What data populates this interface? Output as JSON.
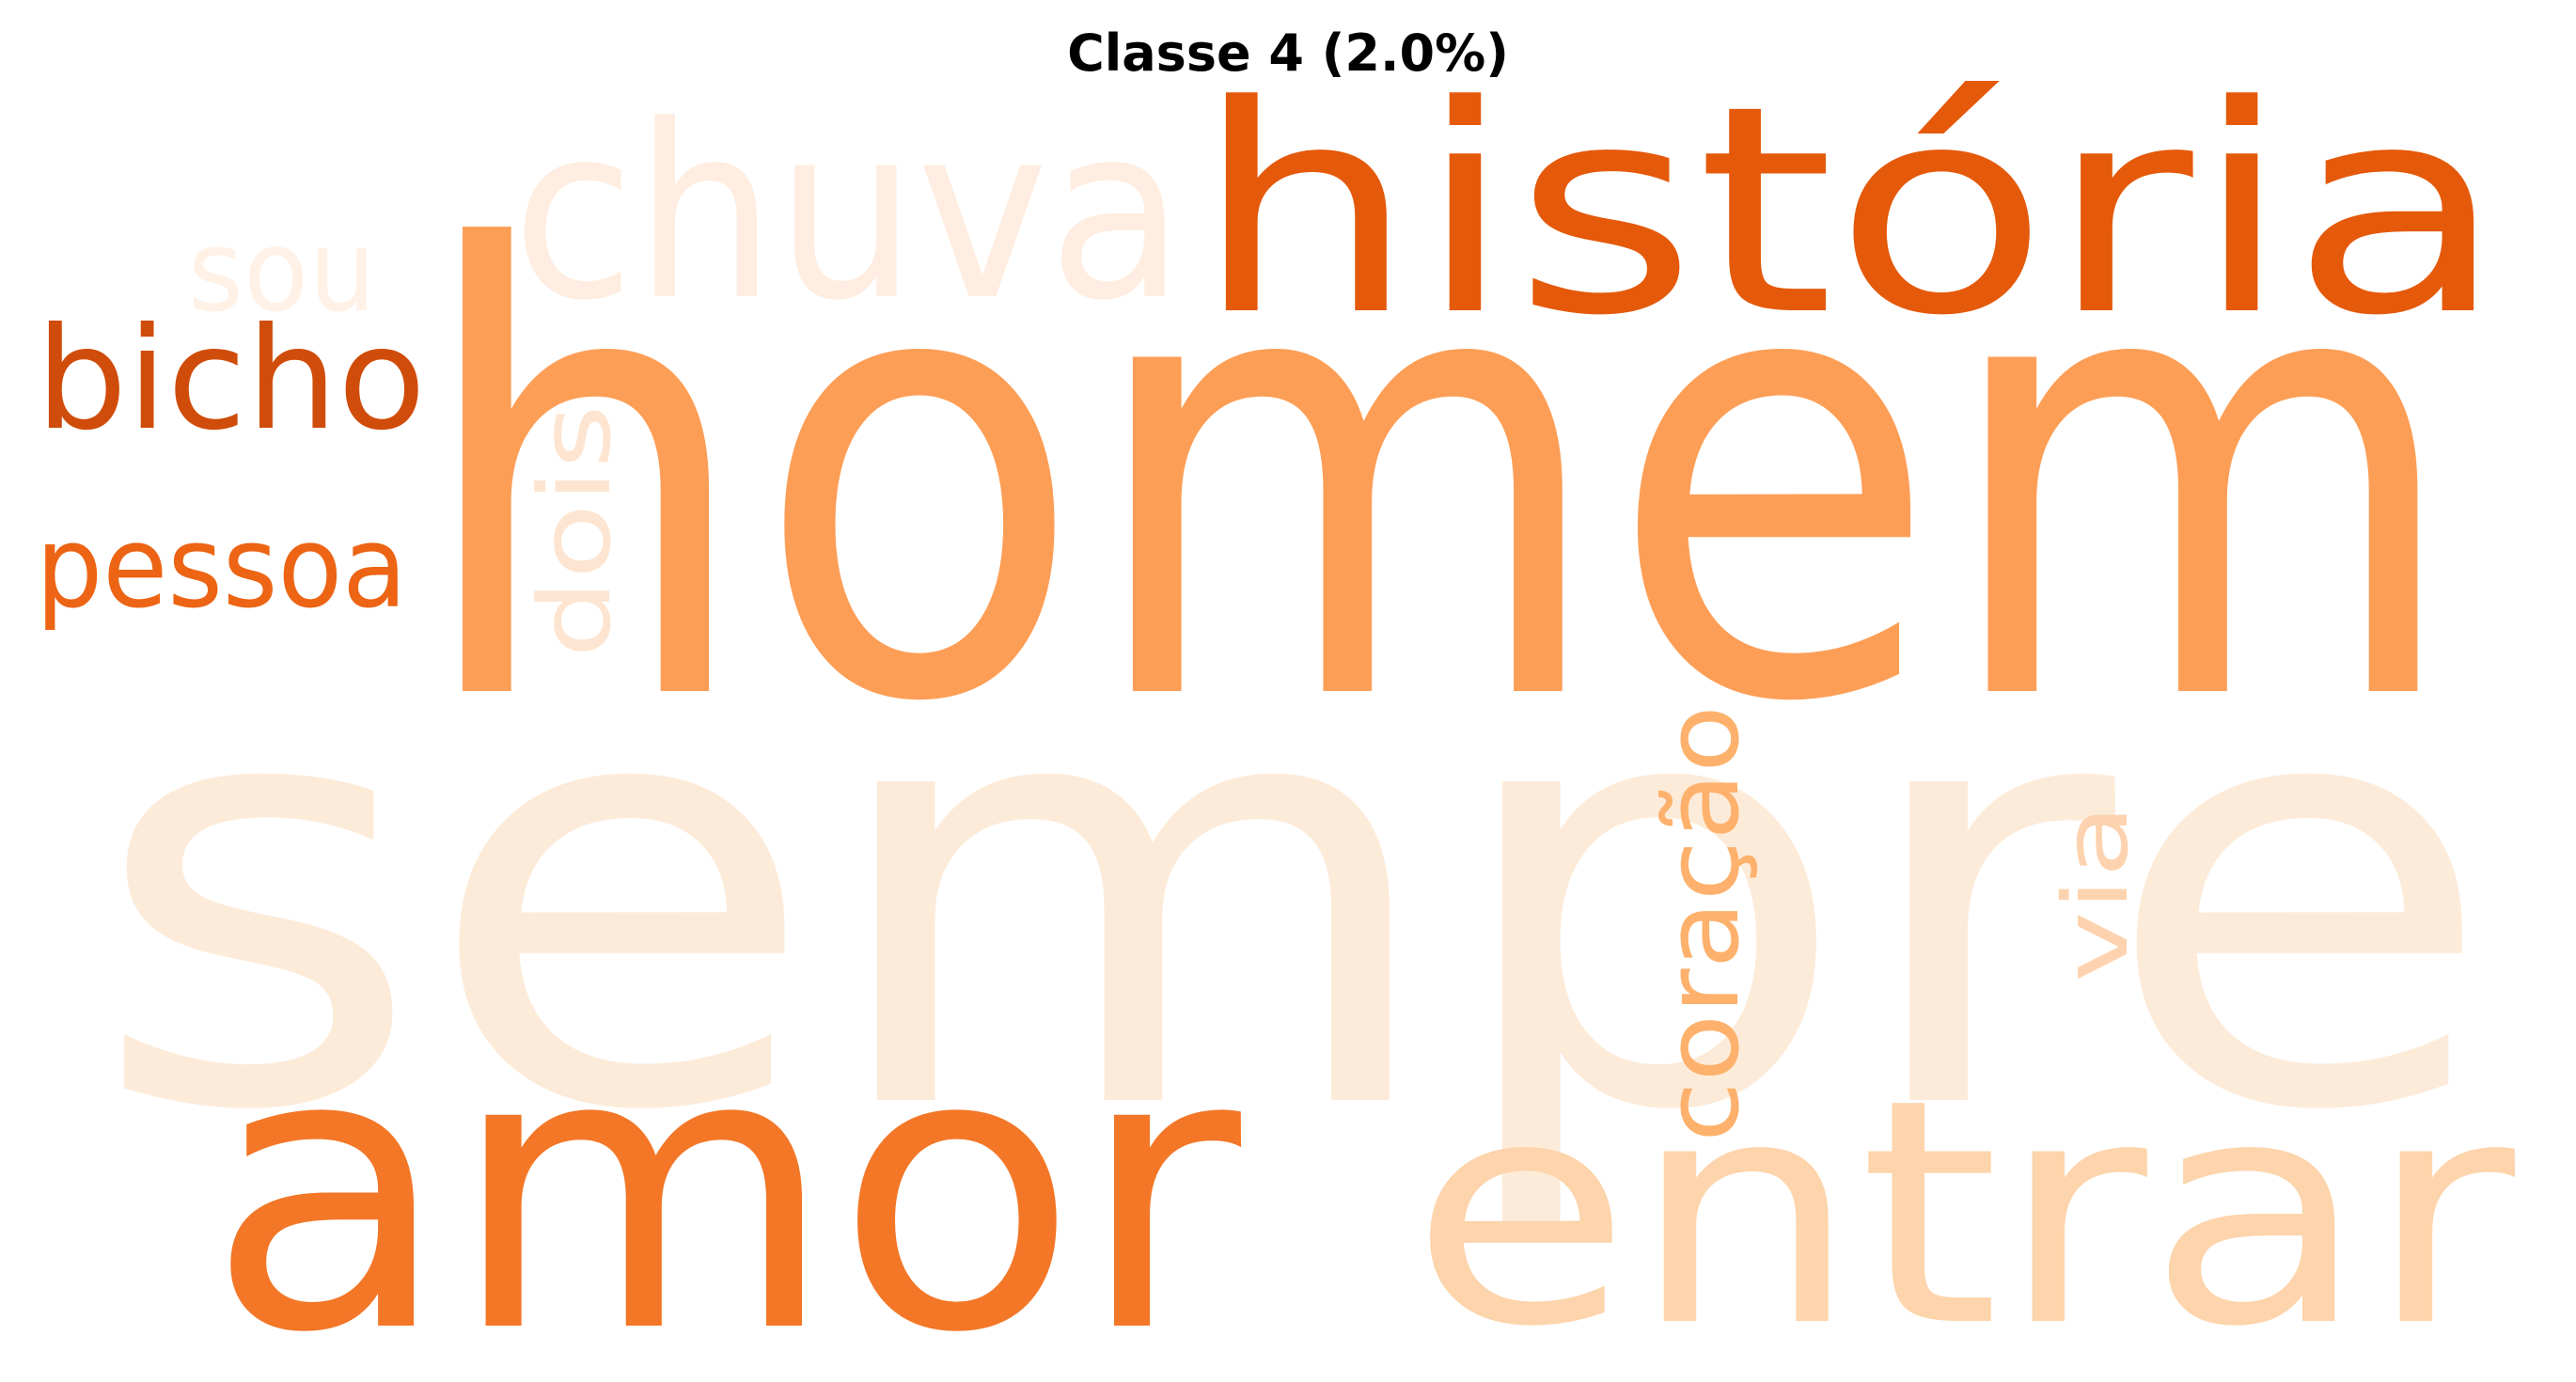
{
  "title": "Classe 4 (2.0%)",
  "words": [
    {
      "text": "sempre",
      "color": "#fdebd9",
      "orientation": "horizontal"
    },
    {
      "text": "homem",
      "color": "#fd9e56",
      "orientation": "horizontal"
    },
    {
      "text": "história",
      "color": "#e5590a",
      "orientation": "horizontal"
    },
    {
      "text": "amor",
      "color": "#f37727",
      "orientation": "horizontal"
    },
    {
      "text": "entrar",
      "color": "#fdd4ab",
      "orientation": "horizontal"
    },
    {
      "text": "chuva",
      "color": "#feede0",
      "orientation": "horizontal"
    },
    {
      "text": "bicho",
      "color": "#d04c0a",
      "orientation": "horizontal"
    },
    {
      "text": "pessoa",
      "color": "#ec6414",
      "orientation": "horizontal"
    },
    {
      "text": "sou",
      "color": "#fff1e6",
      "orientation": "horizontal"
    },
    {
      "text": "dois",
      "color": "#fde5d1",
      "orientation": "vertical"
    },
    {
      "text": "coração",
      "color": "#fdb16c",
      "orientation": "vertical"
    },
    {
      "text": "via",
      "color": "#fdd3af",
      "orientation": "vertical"
    }
  ]
}
